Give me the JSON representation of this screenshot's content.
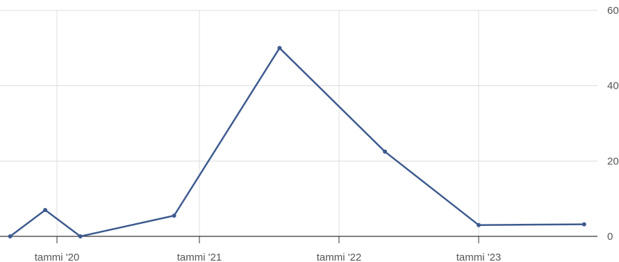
{
  "chart_data": {
    "type": "line",
    "title": "",
    "xlabel": "",
    "ylabel": "",
    "x_tick_labels": [
      "tammi '20",
      "tammi '21",
      "tammi '22",
      "tammi '23"
    ],
    "y_tick_labels": [
      "0",
      "20",
      "40",
      "60"
    ],
    "ylim": [
      0,
      60
    ],
    "grid": true,
    "legend": "none",
    "series": [
      {
        "values": [
          0,
          7,
          0,
          5.5,
          50,
          22.5,
          3,
          3.2
        ]
      }
    ],
    "x_dates": [
      "2019-09",
      "2019-12",
      "2020-03",
      "2020-11",
      "2021-08",
      "2022-05",
      "2023-01",
      "2023-10"
    ],
    "line_color": "#3d5a8f",
    "grid_color": "#dcdcdc",
    "axis_color": "#333333"
  }
}
